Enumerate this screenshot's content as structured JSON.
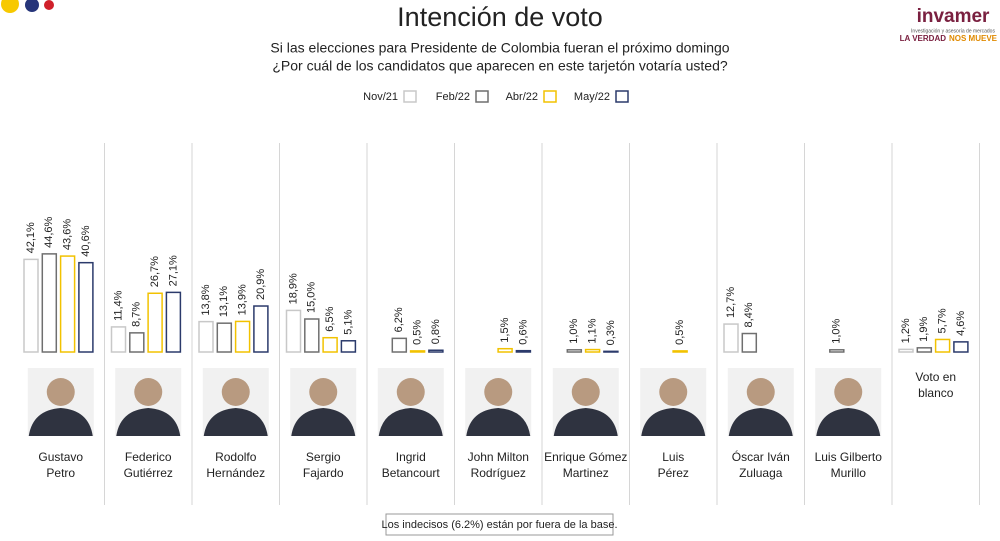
{
  "chart_data": {
    "type": "bar",
    "title": "Intención de voto",
    "subtitle": [
      "Si las elecciones para Presidente de Colombia fueran el próximo domingo",
      "¿Por cuál de los candidatos que aparecen en este tarjetón votaría usted?"
    ],
    "categories": [
      [
        "Gustavo",
        "Petro"
      ],
      [
        "Federico",
        "Gutiérrez"
      ],
      [
        "Rodolfo",
        "Hernández"
      ],
      [
        "Sergio",
        "Fajardo"
      ],
      [
        "Ingrid",
        "Betancourt"
      ],
      [
        "John Milton",
        "Rodríguez"
      ],
      [
        "Enrique Gómez",
        "Martinez"
      ],
      [
        "Luis",
        "Pérez"
      ],
      [
        "Óscar Iván",
        "Zuluaga"
      ],
      [
        "Luis Gilberto",
        "Murillo"
      ],
      [
        "Voto en",
        "blanco"
      ]
    ],
    "series": [
      {
        "name": "Nov/21",
        "color": "#c8c8c8",
        "values": [
          42.1,
          11.4,
          13.8,
          18.9,
          null,
          null,
          null,
          null,
          12.7,
          null,
          1.2
        ],
        "value_labels": [
          "42,1%",
          "11,4%",
          "13,8%",
          "18,9%",
          null,
          null,
          null,
          null,
          "12,7%",
          null,
          "1,2%"
        ]
      },
      {
        "name": "Feb/22",
        "color": "#6f6f6f",
        "values": [
          44.6,
          8.7,
          13.1,
          15.0,
          6.2,
          null,
          1.0,
          null,
          8.4,
          1.0,
          1.9
        ],
        "value_labels": [
          "44,6%",
          "8,7%",
          "13,1%",
          "15,0%",
          "6,2%",
          null,
          "1,0%",
          null,
          "8,4%",
          "1,0%",
          "1,9%"
        ]
      },
      {
        "name": "Abr/22",
        "color": "#f2c200",
        "values": [
          43.6,
          26.7,
          13.9,
          6.5,
          0.5,
          1.5,
          1.1,
          0.5,
          null,
          null,
          5.7
        ],
        "value_labels": [
          "43,6%",
          "26,7%",
          "13,9%",
          "6,5%",
          "0,5%",
          "1,5%",
          "1,1%",
          "0,5%",
          null,
          null,
          "5,7%"
        ]
      },
      {
        "name": "May/22",
        "color": "#2b3a6b",
        "values": [
          40.6,
          27.1,
          20.9,
          5.1,
          0.8,
          0.6,
          0.3,
          null,
          null,
          null,
          4.6
        ],
        "value_labels": [
          "40,6%",
          "27,1%",
          "20,9%",
          "5,1%",
          "0,8%",
          "0,6%",
          "0,3%",
          null,
          null,
          null,
          "4,6%"
        ]
      }
    ],
    "footnote": "Los indecisos (6.2%) están por fuera de la base.",
    "logo": {
      "name": "invamer",
      "tagline": "Investigación y asesoría de mercados",
      "slogan": [
        "LA VERDAD",
        "NOS MUEVE"
      ]
    }
  }
}
